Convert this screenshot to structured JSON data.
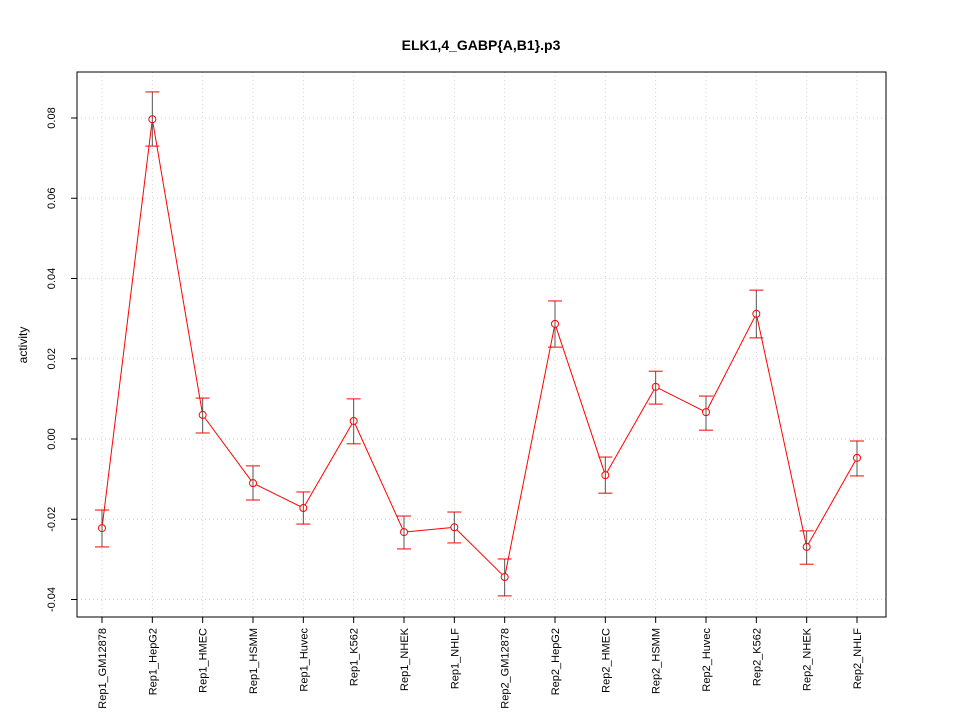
{
  "chart_data": {
    "type": "line",
    "title": "ELK1,4_GABP{A,B1}.p3",
    "xlabel": "",
    "ylabel": "activity",
    "ylim": [
      -0.0435,
      0.0925
    ],
    "yticks": [
      -0.04,
      -0.02,
      0.0,
      0.02,
      0.04,
      0.06,
      0.08
    ],
    "ytick_labels": [
      "-0.04",
      "-0.02",
      "0.00",
      "0.02",
      "0.04",
      "0.06",
      "0.08"
    ],
    "grid": true,
    "categories": [
      "Rep1_GM12878",
      "Rep1_HepG2",
      "Rep1_HMEC",
      "Rep1_HSMM",
      "Rep1_Huvec",
      "Rep1_K562",
      "Rep1_NHEK",
      "Rep1_NHLF",
      "Rep2_GM12878",
      "Rep2_HepG2",
      "Rep2_HMEC",
      "Rep2_HSMM",
      "Rep2_Huvec",
      "Rep2_K562",
      "Rep2_NHEK",
      "Rep2_NHLF"
    ],
    "values": [
      -0.0222,
      0.0797,
      0.006,
      -0.011,
      -0.0172,
      0.0045,
      -0.0232,
      -0.022,
      -0.0344,
      0.0287,
      -0.009,
      0.013,
      0.0067,
      0.0312,
      -0.0269,
      -0.0047
    ],
    "upper": [
      -0.0177,
      0.0865,
      0.0102,
      -0.0067,
      -0.0132,
      0.01,
      -0.0192,
      -0.0182,
      -0.0299,
      0.0344,
      -0.0045,
      0.0169,
      0.0107,
      0.0371,
      -0.0229,
      -0.0005
    ],
    "lower": [
      -0.0269,
      0.073,
      0.0015,
      -0.0152,
      -0.0212,
      -0.0012,
      -0.0274,
      -0.0259,
      -0.0391,
      0.0229,
      -0.0135,
      0.0087,
      0.0022,
      0.0252,
      -0.0312,
      -0.0092
    ],
    "colors": {
      "series": "#ff0000",
      "errorbar": "#555555",
      "grid": "#d3d3d3"
    }
  }
}
